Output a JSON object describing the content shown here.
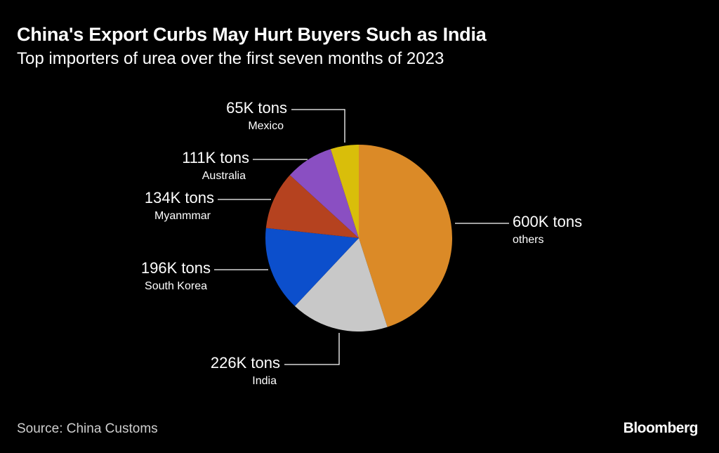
{
  "header": {
    "title": "China's Export Curbs May Hurt Buyers Such as India",
    "subtitle": "Top importers of urea over the first seven months of 2023"
  },
  "footer": {
    "source": "Source: China Customs",
    "brand": "Bloomberg"
  },
  "chart_data": {
    "type": "pie",
    "title": "China's Export Curbs May Hurt Buyers Such as India",
    "subtitle": "Top importers of urea over the first seven months of 2023",
    "unit": "tons",
    "slices": [
      {
        "name": "others",
        "value": 600000,
        "label": "600K tons",
        "color": "#DB8A27"
      },
      {
        "name": "India",
        "value": 226000,
        "label": "226K tons",
        "color": "#C8C8C8"
      },
      {
        "name": "South Korea",
        "value": 196000,
        "label": "196K tons",
        "color": "#0C4FCC"
      },
      {
        "name": "Myanmmar",
        "value": 134000,
        "label": "134K tons",
        "color": "#B5421F"
      },
      {
        "name": "Australia",
        "value": 111000,
        "label": "111K tons",
        "color": "#8A4FC2"
      },
      {
        "name": "Mexico",
        "value": 65000,
        "label": "65K tons",
        "color": "#D9BE0A"
      }
    ]
  }
}
